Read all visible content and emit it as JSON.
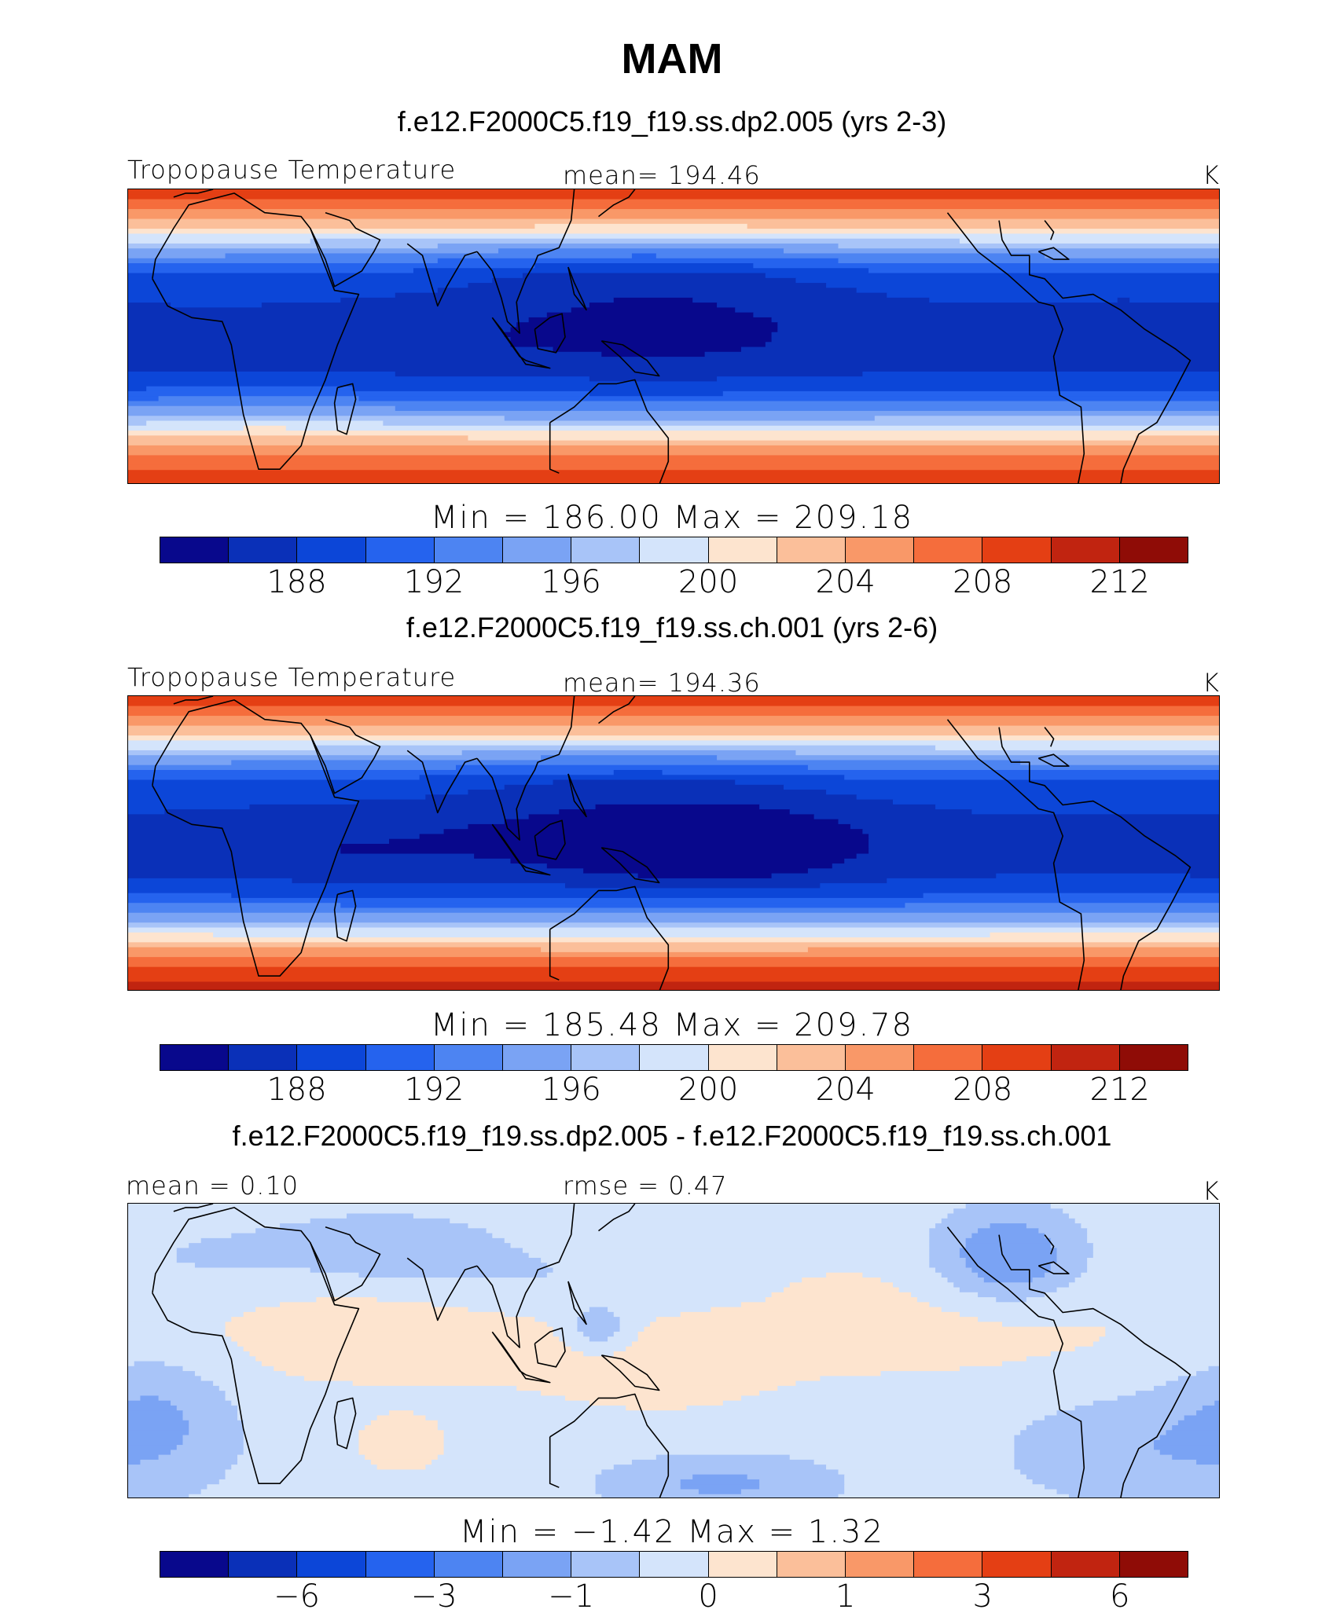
{
  "title": "MAM",
  "colormap": [
    "#08088c",
    "#0a30b8",
    "#0c46d8",
    "#2563ee",
    "#4d84f2",
    "#7aa3f4",
    "#a8c4f8",
    "#d4e4fb",
    "#fde4cf",
    "#fbbf9a",
    "#f99868",
    "#f56d3c",
    "#e43f14",
    "#c12410",
    "#8f0c06"
  ],
  "coastline_color": "#000000",
  "chart_data": [
    {
      "type": "heatmap",
      "panel_id": "model",
      "run_title": "f.e12.F2000C5.f19_f19.ss.dp2.005 (yrs 2-3)",
      "variable": "Tropopause Temperature",
      "units": "K",
      "mean_label": "mean=",
      "mean_value": "194.46",
      "minmax_text": "Min  =  186.00  Max  =  209.18",
      "min": 186.0,
      "max": 209.18,
      "levels": [
        186,
        188,
        190,
        192,
        194,
        196,
        198,
        200,
        202,
        204,
        206,
        208,
        210,
        212,
        214
      ],
      "tick_labels": [
        "188",
        "192",
        "196",
        "200",
        "204",
        "208",
        "212"
      ],
      "tick_positions": [
        1,
        3,
        5,
        7,
        9,
        11,
        13
      ],
      "field": {
        "lat_range": [
          -38,
          38
        ],
        "lon_range": [
          -25,
          335
        ],
        "base_profile": [
          [
            -38,
            211
          ],
          [
            -32,
            208
          ],
          [
            -26,
            203
          ],
          [
            -20,
            196
          ],
          [
            -14,
            191
          ],
          [
            -8,
            188.8
          ],
          [
            -2,
            188.4
          ],
          [
            4,
            188.6
          ],
          [
            10,
            189.5
          ],
          [
            16,
            191
          ],
          [
            22,
            196
          ],
          [
            28,
            203
          ],
          [
            34,
            208
          ],
          [
            38,
            211
          ]
        ],
        "anomalies": [
          {
            "lon": 150,
            "lat": 4,
            "dlon": 45,
            "dlat": 11,
            "amp": -2.2
          },
          {
            "lon": 55,
            "lat": -1,
            "dlon": 35,
            "dlat": 6,
            "amp": -0.8
          },
          {
            "lon": 305,
            "lat": 2,
            "dlon": 30,
            "dlat": 6,
            "amp": -0.9
          },
          {
            "lon": 140,
            "lat": 18,
            "dlon": 55,
            "dlat": 6,
            "amp": -1.6
          },
          {
            "lon": 20,
            "lat": -20,
            "dlon": 30,
            "dlat": 6,
            "amp": 1.2
          }
        ]
      }
    },
    {
      "type": "heatmap",
      "panel_id": "control",
      "run_title": "f.e12.F2000C5.f19_f19.ss.ch.001 (yrs 2-6)",
      "variable": "Tropopause Temperature",
      "units": "K",
      "mean_label": "mean=",
      "mean_value": "194.36",
      "minmax_text": "Min  =  185.48  Max  =  209.78",
      "min": 185.48,
      "max": 209.78,
      "levels": [
        186,
        188,
        190,
        192,
        194,
        196,
        198,
        200,
        202,
        204,
        206,
        208,
        210,
        212,
        214
      ],
      "tick_labels": [
        "188",
        "192",
        "196",
        "200",
        "204",
        "208",
        "212"
      ],
      "tick_positions": [
        1,
        3,
        5,
        7,
        9,
        11,
        13
      ],
      "field": {
        "lat_range": [
          -38,
          38
        ],
        "lon_range": [
          -25,
          335
        ],
        "base_profile": [
          [
            -38,
            212
          ],
          [
            -32,
            209
          ],
          [
            -26,
            204
          ],
          [
            -20,
            197
          ],
          [
            -14,
            191.5
          ],
          [
            -8,
            189
          ],
          [
            -2,
            188.4
          ],
          [
            4,
            188.5
          ],
          [
            10,
            189.5
          ],
          [
            16,
            191
          ],
          [
            22,
            196
          ],
          [
            28,
            203
          ],
          [
            34,
            208
          ],
          [
            38,
            211
          ]
        ],
        "anomalies": [
          {
            "lon": 175,
            "lat": 0,
            "dlon": 35,
            "dlat": 9,
            "amp": -3.0
          },
          {
            "lon": 120,
            "lat": 2,
            "dlon": 40,
            "dlat": 10,
            "amp": -1.6
          },
          {
            "lon": 35,
            "lat": -1,
            "dlon": 35,
            "dlat": 7,
            "amp": -1.2
          },
          {
            "lon": 140,
            "lat": 18,
            "dlon": 55,
            "dlat": 6,
            "amp": -1.4
          }
        ]
      }
    },
    {
      "type": "heatmap",
      "panel_id": "difference",
      "run_title": "f.e12.F2000C5.f19_f19.ss.dp2.005 - f.e12.F2000C5.f19_f19.ss.ch.001",
      "variable": "",
      "units": "K",
      "mean_label": "mean =",
      "mean_value": "0.10",
      "rmse_label": "rmse =",
      "rmse_value": "0.47",
      "minmax_text": "Min  =  −1.42  Max  =   1.32",
      "min": -1.42,
      "max": 1.32,
      "levels": [
        -8,
        -6,
        -4,
        -3,
        -2,
        -1,
        -0.5,
        0,
        0.5,
        1,
        2,
        3,
        4,
        6,
        8
      ],
      "tick_labels": [
        "−6",
        "−3",
        "−1",
        "0",
        "1",
        "3",
        "6"
      ],
      "tick_positions": [
        1,
        3,
        5,
        7,
        9,
        11,
        13
      ],
      "field": {
        "lat_range": [
          -38,
          38
        ],
        "lon_range": [
          -25,
          335
        ],
        "base_profile": [
          [
            -38,
            -0.05
          ],
          [
            38,
            -0.05
          ]
        ],
        "anomalies": [
          {
            "lon": 55,
            "lat": 5,
            "dlon": 55,
            "dlat": 12,
            "amp": 0.55
          },
          {
            "lon": 230,
            "lat": 5,
            "dlon": 60,
            "dlat": 10,
            "amp": 0.5
          },
          {
            "lon": 150,
            "lat": -8,
            "dlon": 30,
            "dlat": 8,
            "amp": 0.35
          },
          {
            "lon": 65,
            "lat": -24,
            "dlon": 10,
            "dlat": 5,
            "amp": 0.75
          },
          {
            "lon": 210,
            "lat": 14,
            "dlon": 10,
            "dlat": 4,
            "amp": 0.45
          },
          {
            "lon": 265,
            "lat": 24,
            "dlon": 15,
            "dlat": 8,
            "amp": -1.3
          },
          {
            "lon": 60,
            "lat": 26,
            "dlon": 25,
            "dlat": 6,
            "amp": -0.7
          },
          {
            "lon": -15,
            "lat": -15,
            "dlon": 18,
            "dlat": 12,
            "amp": -0.7
          },
          {
            "lon": 310,
            "lat": -25,
            "dlon": 30,
            "dlat": 10,
            "amp": -0.6
          },
          {
            "lon": 130,
            "lat": 6,
            "dlon": 7,
            "dlat": 4,
            "amp": -0.9
          },
          {
            "lon": 170,
            "lat": -34,
            "dlon": 25,
            "dlat": 5,
            "amp": -0.8
          },
          {
            "lon": 110,
            "lat": 18,
            "dlon": 30,
            "dlat": 6,
            "amp": -0.35
          },
          {
            "lon": 0,
            "lat": 22,
            "dlon": 25,
            "dlat": 8,
            "amp": -0.3
          }
        ]
      }
    }
  ]
}
